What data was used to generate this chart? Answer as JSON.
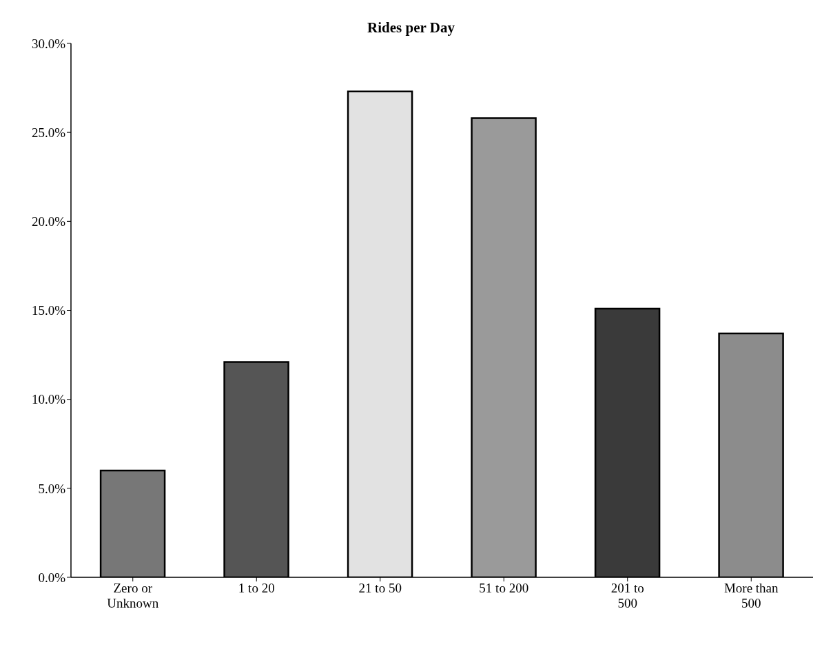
{
  "chart_data": {
    "type": "bar",
    "title": "Rides per Day",
    "categories": [
      "Zero or Unknown",
      "1 to 20",
      "21 to 50",
      "51 to 200",
      "201 to 500",
      "More than 500"
    ],
    "values": [
      6.0,
      12.1,
      27.3,
      25.8,
      15.1,
      13.7
    ],
    "colors": [
      "#777777",
      "#555555",
      "#e2e2e2",
      "#9a9a9a",
      "#3a3a3a",
      "#8c8c8c"
    ],
    "ylim": [
      0,
      30
    ],
    "yticks": [
      {
        "value": 0,
        "label": "0.0%"
      },
      {
        "value": 5,
        "label": "5.0%"
      },
      {
        "value": 10,
        "label": "10.0%"
      },
      {
        "value": 15,
        "label": "15.0%"
      },
      {
        "value": 20,
        "label": "20.0%"
      },
      {
        "value": 25,
        "label": "25.0%"
      },
      {
        "value": 30,
        "label": "30.0%"
      }
    ],
    "grid": false,
    "legend": false
  }
}
